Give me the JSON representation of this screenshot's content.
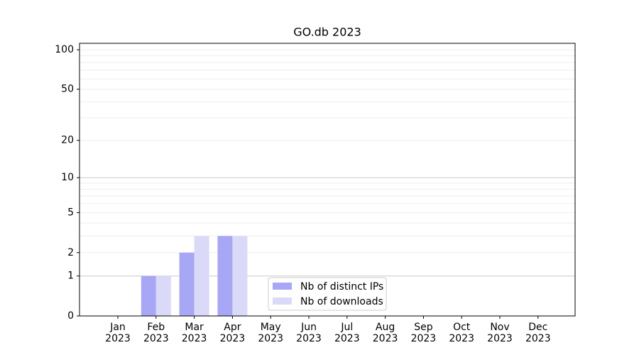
{
  "chart_data": {
    "type": "bar",
    "title": "GO.db 2023",
    "categories": [
      "Jan\n2023",
      "Feb\n2023",
      "Mar\n2023",
      "Apr\n2023",
      "May\n2023",
      "Jun\n2023",
      "Jul\n2023",
      "Aug\n2023",
      "Sep\n2023",
      "Oct\n2023",
      "Nov\n2023",
      "Dec\n2023"
    ],
    "series": [
      {
        "name": "Nb of distinct IPs",
        "color": "#a7a7f5",
        "values": [
          0,
          1,
          2,
          3,
          0,
          0,
          0,
          0,
          0,
          0,
          0,
          0
        ]
      },
      {
        "name": "Nb of downloads",
        "color": "#dadaf8",
        "values": [
          0,
          1,
          3,
          3,
          0,
          0,
          0,
          0,
          0,
          0,
          0,
          0
        ]
      }
    ],
    "yscale": "log1p",
    "ylim": [
      0,
      112
    ],
    "yticks": [
      0,
      1,
      2,
      5,
      10,
      20,
      50,
      100
    ],
    "grid_major": [
      1,
      10
    ],
    "grid_minor": [
      2,
      3,
      4,
      5,
      6,
      7,
      8,
      9,
      20,
      30,
      40,
      50,
      60,
      70,
      80,
      90,
      100
    ],
    "legend": "lower center"
  }
}
